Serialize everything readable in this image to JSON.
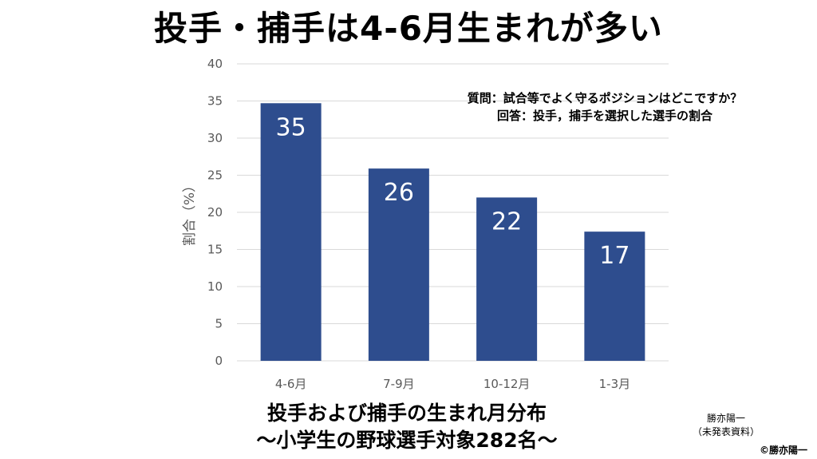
{
  "title": "投手・捕手は4-6月生まれが多い",
  "note": {
    "question": "質問：試合等でよく守るポジションはどこですか？",
    "answer": "回答：投手，捕手を選択した選手の割合"
  },
  "subtitle": {
    "line1": "投手および捕手の生まれ月分布",
    "line2": "～小学生の野球選手対象282名～"
  },
  "credit": {
    "author": "勝亦陽一",
    "source": "（未発表資料）"
  },
  "copyright": "©勝亦陽一",
  "chart_data": {
    "type": "bar",
    "categories": [
      "4-6月",
      "7-9月",
      "10-12月",
      "1-3月"
    ],
    "values": [
      34.7,
      25.9,
      22.0,
      17.4
    ],
    "data_labels": [
      "35",
      "26",
      "22",
      "17"
    ],
    "ylabel": "割合（%）",
    "ylim": [
      0,
      40
    ],
    "yticks": [
      0,
      5,
      10,
      15,
      20,
      25,
      30,
      35,
      40
    ],
    "grid": true,
    "bar_color": "#2E4D8E",
    "grid_color": "#D9D9D9"
  }
}
